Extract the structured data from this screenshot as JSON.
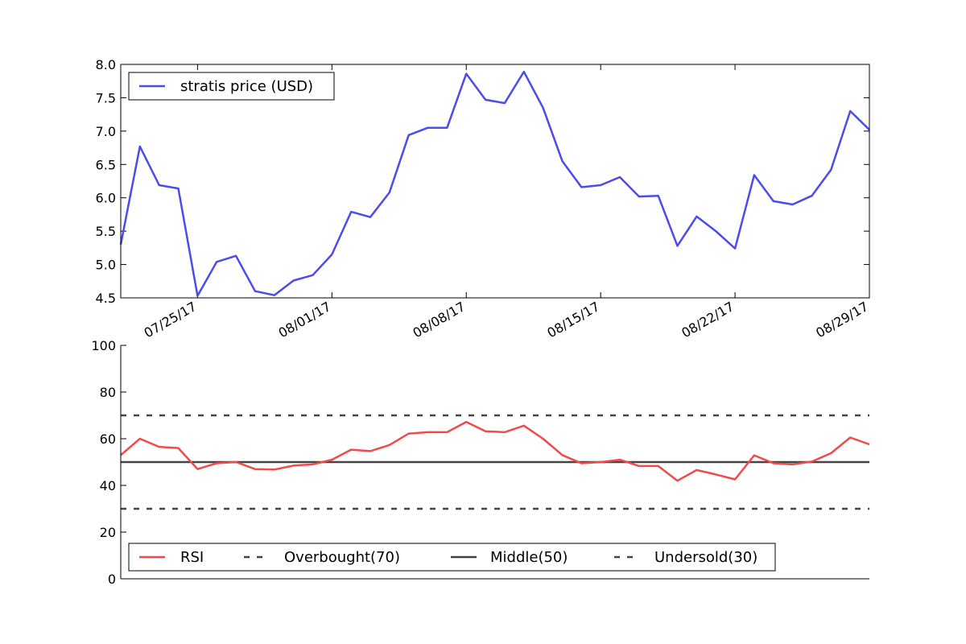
{
  "chart_data": [
    {
      "type": "line",
      "title": "",
      "xlabel": "",
      "ylabel": "",
      "x_tick_labels": [
        "07/25/17",
        "08/01/17",
        "08/08/17",
        "08/15/17",
        "08/22/17",
        "08/29/17"
      ],
      "x_tick_index": [
        4,
        11,
        18,
        25,
        32,
        39
      ],
      "ylim": [
        4.5,
        8.0
      ],
      "y_ticks": [
        "4.5",
        "5.0",
        "5.5",
        "6.0",
        "6.5",
        "7.0",
        "7.5",
        "8.0"
      ],
      "legend_position": "top-left",
      "series": [
        {
          "name": "stratis price (USD)",
          "color": "#4b4bf0",
          "values": [
            5.3,
            6.77,
            6.19,
            6.14,
            4.53,
            5.04,
            5.13,
            4.6,
            4.54,
            4.76,
            4.84,
            5.15,
            5.79,
            5.71,
            6.08,
            6.94,
            7.05,
            7.05,
            7.86,
            7.47,
            7.42,
            7.89,
            7.35,
            6.55,
            6.16,
            6.19,
            6.31,
            6.02,
            6.03,
            5.28,
            5.72,
            5.5,
            5.24,
            6.34,
            5.95,
            5.9,
            6.03,
            6.42,
            7.3,
            7.02
          ]
        }
      ]
    },
    {
      "type": "line",
      "title": "",
      "xlabel": "",
      "ylabel": "",
      "ylim": [
        0,
        100
      ],
      "y_ticks": [
        "0",
        "20",
        "40",
        "60",
        "80",
        "100"
      ],
      "legend_position": "bottom-left",
      "series": [
        {
          "name": "RSI",
          "color": "#f04b4b",
          "style": "solid",
          "values": [
            53,
            60,
            56.5,
            56,
            47,
            49.5,
            50,
            47,
            46.8,
            48.5,
            49,
            51,
            55.3,
            54.7,
            57.3,
            62.2,
            62.8,
            62.8,
            67.2,
            63.2,
            62.8,
            65.6,
            60,
            53,
            49.5,
            50,
            51,
            48.3,
            48.3,
            42,
            46.6,
            44.7,
            42.6,
            52.9,
            49.5,
            49,
            50.2,
            53.8,
            60.5,
            57.6
          ]
        },
        {
          "name": "Overbought(70)",
          "color": "#444444",
          "style": "dashed",
          "level": 70
        },
        {
          "name": "Middle(50)",
          "color": "#444444",
          "style": "solid",
          "level": 50
        },
        {
          "name": "Undersold(30)",
          "color": "#444444",
          "style": "dashed",
          "level": 30
        }
      ]
    }
  ]
}
